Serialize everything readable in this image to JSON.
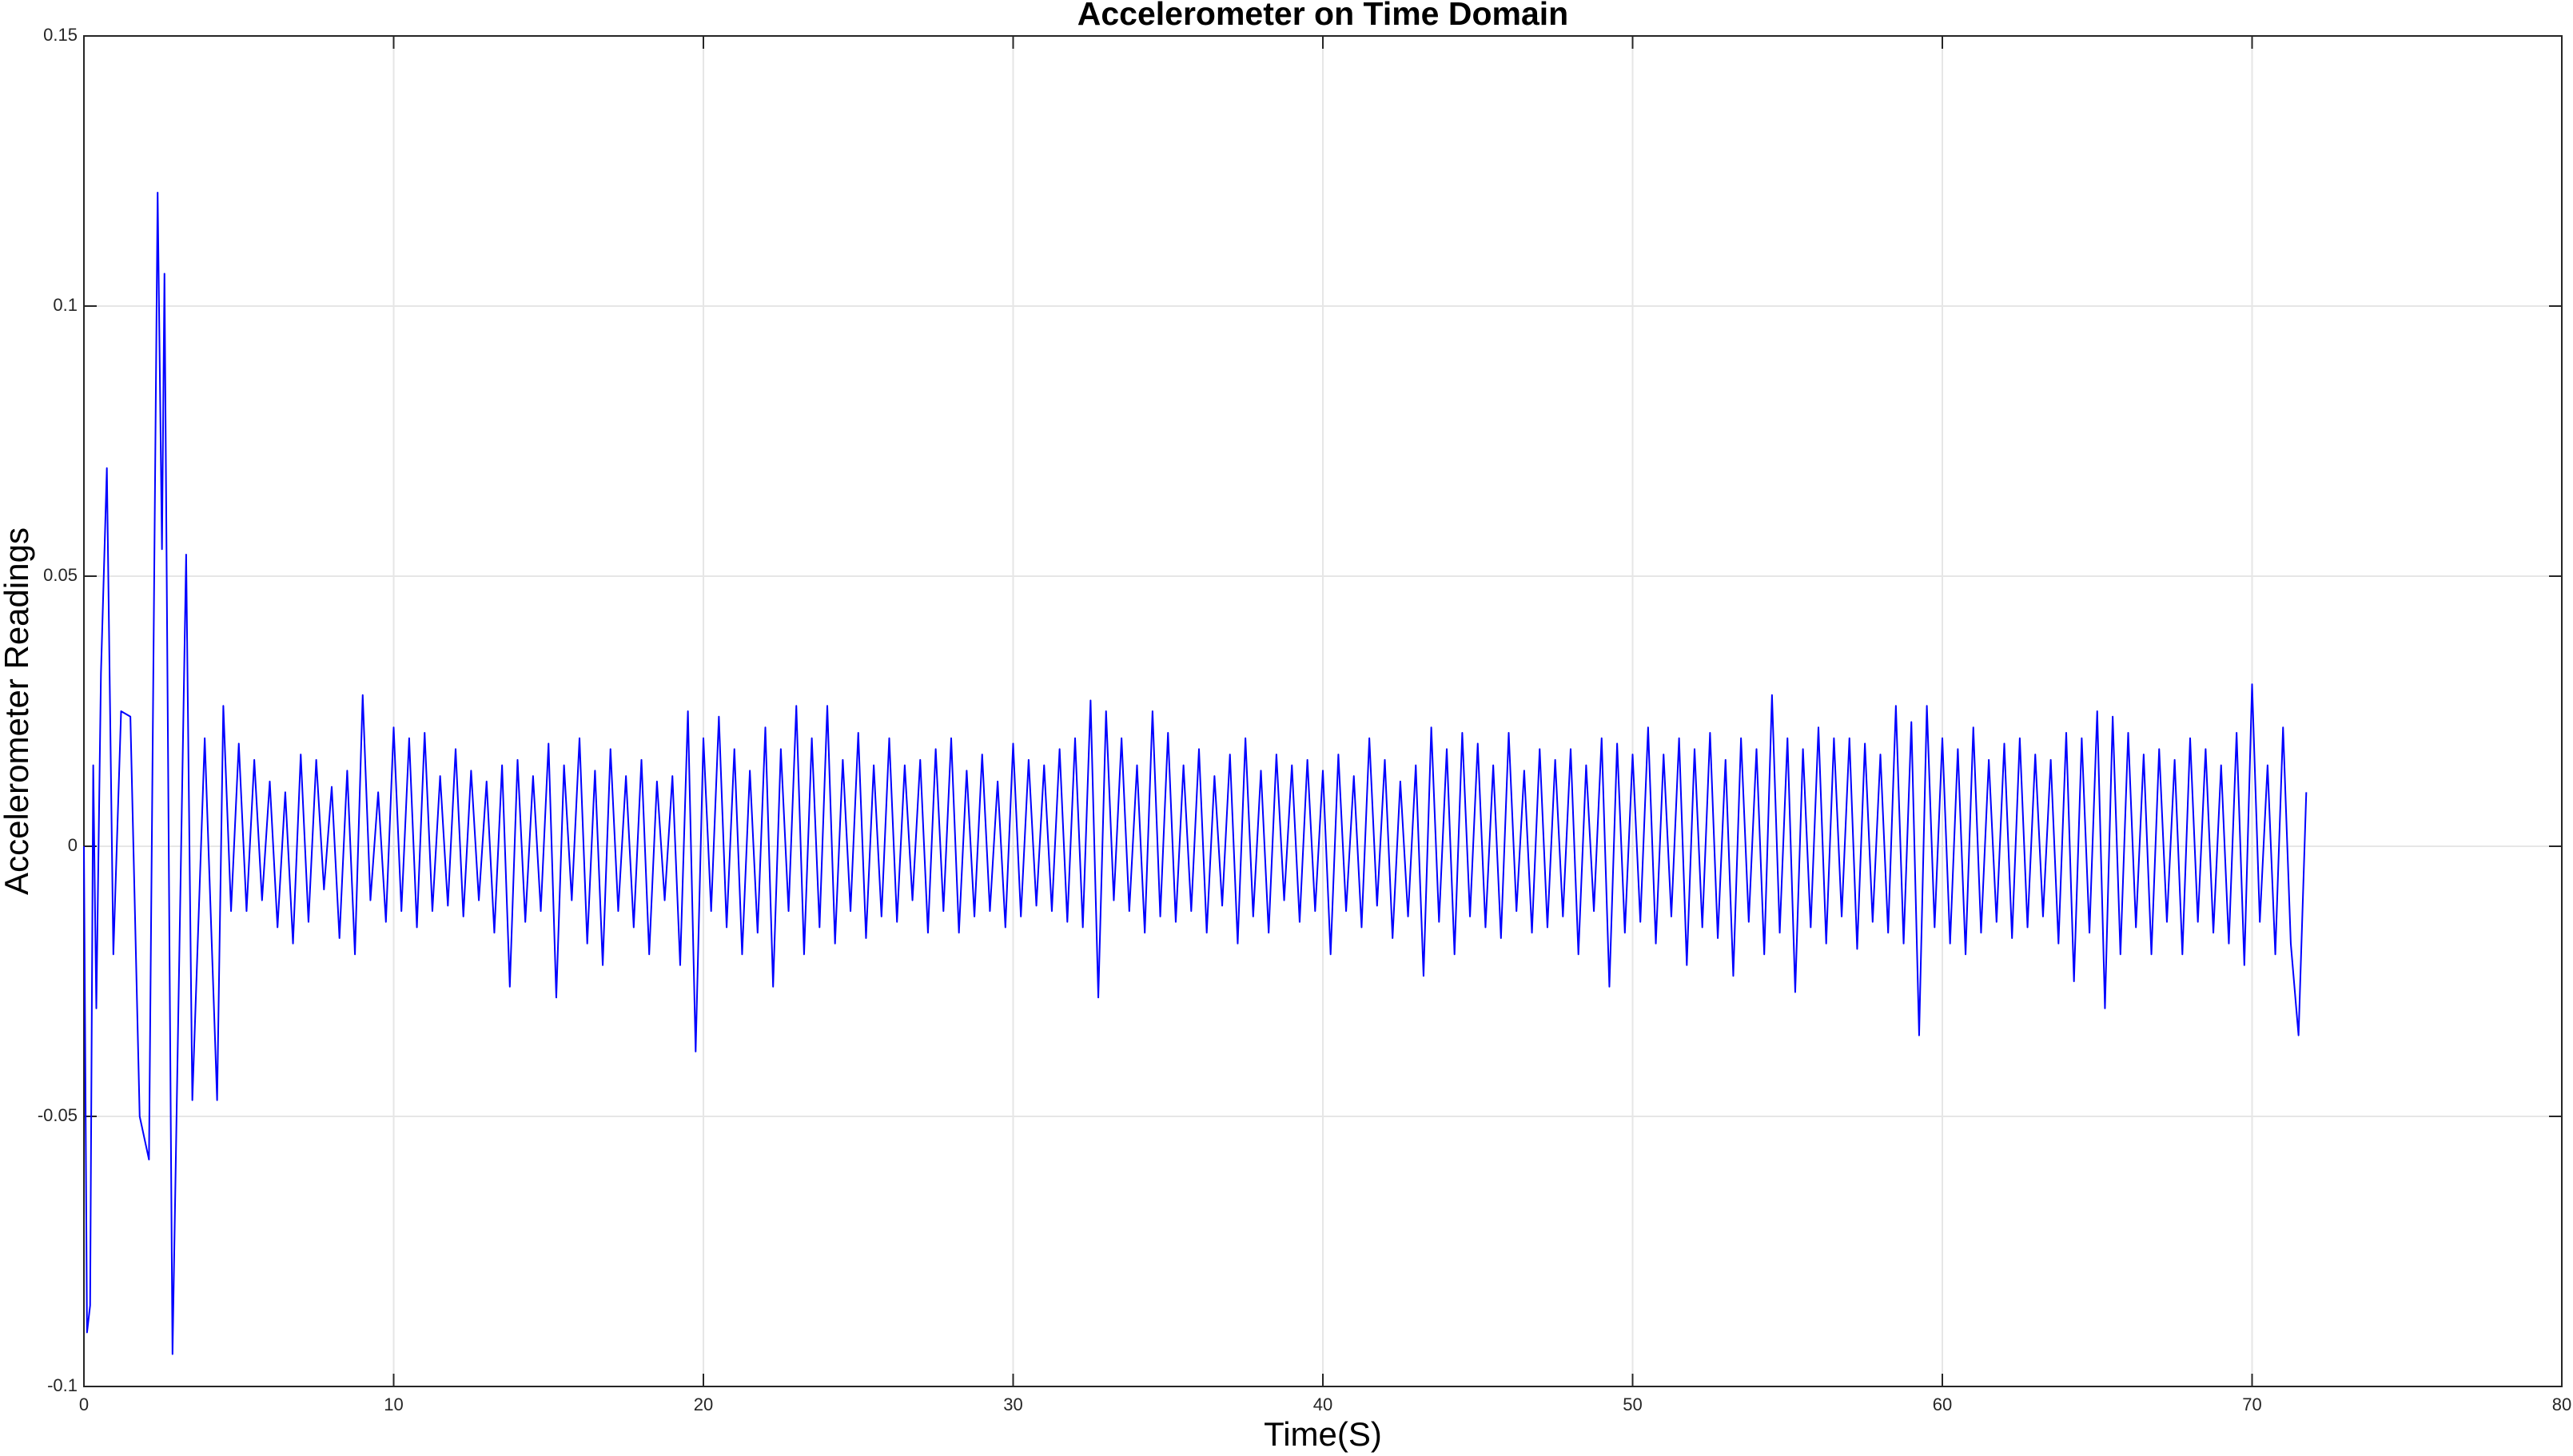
{
  "chart_data": {
    "type": "line",
    "title": "Accelerometer on Time Domain",
    "x_label": "Time(S)",
    "y_label": "Accelerometer Readings",
    "color": "#0000ff",
    "grid": true,
    "xlim": [
      0,
      80
    ],
    "xticks": [
      0,
      10,
      20,
      30,
      40,
      50,
      60,
      70,
      80
    ],
    "ylim": [
      -0.1,
      0.15
    ],
    "yticks": [
      -0.1,
      -0.05,
      0,
      0.05,
      0.1,
      0.15
    ],
    "x": [
      0,
      0.1,
      0.2,
      0.3,
      0.4,
      0.55,
      0.74,
      0.95,
      1.2,
      1.5,
      1.8,
      2.1,
      2.38,
      2.52,
      2.6,
      2.86,
      3.3,
      3.5,
      3.9,
      4.3,
      4.5,
      4.75,
      5,
      5.25,
      5.5,
      5.75,
      6,
      6.25,
      6.5,
      6.75,
      7,
      7.25,
      7.5,
      7.75,
      8,
      8.25,
      8.5,
      8.75,
      9,
      9.25,
      9.5,
      9.75,
      10,
      10.25,
      10.5,
      10.75,
      11,
      11.25,
      11.5,
      11.75,
      12,
      12.25,
      12.5,
      12.75,
      13,
      13.25,
      13.5,
      13.75,
      14,
      14.25,
      14.5,
      14.75,
      15,
      15.25,
      15.5,
      15.75,
      16,
      16.25,
      16.5,
      16.75,
      17,
      17.25,
      17.5,
      17.75,
      18,
      18.25,
      18.5,
      18.75,
      19,
      19.25,
      19.5,
      19.75,
      20,
      20.25,
      20.5,
      20.75,
      21,
      21.25,
      21.5,
      21.75,
      22,
      22.25,
      22.5,
      22.75,
      23,
      23.25,
      23.5,
      23.75,
      24,
      24.25,
      24.5,
      24.75,
      25,
      25.25,
      25.5,
      25.75,
      26,
      26.25,
      26.5,
      26.75,
      27,
      27.25,
      27.5,
      27.75,
      28,
      28.25,
      28.5,
      28.75,
      29,
      29.25,
      29.5,
      29.75,
      30,
      30.25,
      30.5,
      30.75,
      31,
      31.25,
      31.5,
      31.75,
      32,
      32.25,
      32.5,
      32.75,
      33,
      33.25,
      33.5,
      33.75,
      34,
      34.25,
      34.5,
      34.75,
      35,
      35.25,
      35.5,
      35.75,
      36,
      36.25,
      36.5,
      36.75,
      37,
      37.25,
      37.5,
      37.75,
      38,
      38.25,
      38.5,
      38.75,
      39,
      39.25,
      39.5,
      39.75,
      40,
      40.25,
      40.5,
      40.75,
      41,
      41.25,
      41.5,
      41.75,
      42,
      42.25,
      42.5,
      42.75,
      43,
      43.25,
      43.5,
      43.75,
      44,
      44.25,
      44.5,
      44.75,
      45,
      45.25,
      45.5,
      45.75,
      46,
      46.25,
      46.5,
      46.75,
      47,
      47.25,
      47.5,
      47.75,
      48,
      48.25,
      48.5,
      48.75,
      49,
      49.25,
      49.5,
      49.75,
      50,
      50.25,
      50.5,
      50.75,
      51,
      51.25,
      51.5,
      51.75,
      52,
      52.25,
      52.5,
      52.75,
      53,
      53.25,
      53.5,
      53.75,
      54,
      54.25,
      54.5,
      54.75,
      55,
      55.25,
      55.5,
      55.75,
      56,
      56.25,
      56.5,
      56.75,
      57,
      57.25,
      57.5,
      57.75,
      58,
      58.25,
      58.5,
      58.75,
      59,
      59.25,
      59.5,
      59.75,
      60,
      60.25,
      60.5,
      60.75,
      61,
      61.25,
      61.5,
      61.75,
      62,
      62.25,
      62.5,
      62.75,
      63,
      63.25,
      63.5,
      63.75,
      64,
      64.25,
      64.5,
      64.75,
      65,
      65.25,
      65.5,
      65.75,
      66,
      66.25,
      66.5,
      66.75,
      67,
      67.25,
      67.5,
      67.75,
      68,
      68.25,
      68.5,
      68.75,
      69,
      69.25,
      69.5,
      69.75,
      70,
      70.25,
      70.5,
      70.75,
      71,
      71.25,
      71.5,
      71.75
    ],
    "values": [
      0,
      -0.09,
      -0.085,
      0.015,
      -0.03,
      0.032,
      0.07,
      -0.02,
      0.025,
      0.024,
      -0.05,
      -0.058,
      0.121,
      0.055,
      0.106,
      -0.094,
      0.054,
      -0.047,
      0.02,
      -0.047,
      0.026,
      -0.012,
      0.019,
      -0.012,
      0.016,
      -0.01,
      0.012,
      -0.015,
      0.01,
      -0.018,
      0.017,
      -0.014,
      0.016,
      -0.008,
      0.011,
      -0.017,
      0.014,
      -0.02,
      0.028,
      -0.01,
      0.01,
      -0.014,
      0.022,
      -0.012,
      0.02,
      -0.015,
      0.021,
      -0.012,
      0.013,
      -0.011,
      0.018,
      -0.013,
      0.014,
      -0.01,
      0.012,
      -0.016,
      0.015,
      -0.026,
      0.016,
      -0.014,
      0.013,
      -0.012,
      0.019,
      -0.028,
      0.015,
      -0.01,
      0.02,
      -0.018,
      0.014,
      -0.022,
      0.018,
      -0.012,
      0.013,
      -0.015,
      0.016,
      -0.02,
      0.012,
      -0.01,
      0.013,
      -0.022,
      0.025,
      -0.038,
      0.02,
      -0.012,
      0.024,
      -0.015,
      0.018,
      -0.02,
      0.014,
      -0.016,
      0.022,
      -0.026,
      0.018,
      -0.012,
      0.026,
      -0.02,
      0.02,
      -0.015,
      0.026,
      -0.018,
      0.016,
      -0.012,
      0.021,
      -0.017,
      0.015,
      -0.013,
      0.02,
      -0.014,
      0.015,
      -0.01,
      0.016,
      -0.016,
      0.018,
      -0.012,
      0.02,
      -0.016,
      0.014,
      -0.013,
      0.017,
      -0.012,
      0.012,
      -0.015,
      0.019,
      -0.013,
      0.016,
      -0.011,
      0.015,
      -0.012,
      0.018,
      -0.014,
      0.02,
      -0.015,
      0.027,
      -0.028,
      0.025,
      -0.01,
      0.02,
      -0.012,
      0.015,
      -0.016,
      0.025,
      -0.013,
      0.021,
      -0.014,
      0.015,
      -0.012,
      0.018,
      -0.016,
      0.013,
      -0.011,
      0.017,
      -0.018,
      0.02,
      -0.013,
      0.014,
      -0.016,
      0.017,
      -0.01,
      0.015,
      -0.014,
      0.016,
      -0.012,
      0.014,
      -0.02,
      0.017,
      -0.012,
      0.013,
      -0.015,
      0.02,
      -0.011,
      0.016,
      -0.017,
      0.012,
      -0.013,
      0.015,
      -0.024,
      0.022,
      -0.014,
      0.018,
      -0.02,
      0.021,
      -0.013,
      0.019,
      -0.015,
      0.015,
      -0.017,
      0.021,
      -0.012,
      0.014,
      -0.016,
      0.018,
      -0.015,
      0.016,
      -0.013,
      0.018,
      -0.02,
      0.015,
      -0.012,
      0.02,
      -0.026,
      0.019,
      -0.016,
      0.017,
      -0.014,
      0.022,
      -0.018,
      0.017,
      -0.013,
      0.02,
      -0.022,
      0.018,
      -0.015,
      0.021,
      -0.017,
      0.016,
      -0.024,
      0.02,
      -0.014,
      0.018,
      -0.02,
      0.028,
      -0.016,
      0.02,
      -0.027,
      0.018,
      -0.015,
      0.022,
      -0.018,
      0.02,
      -0.013,
      0.02,
      -0.019,
      0.019,
      -0.014,
      0.017,
      -0.016,
      0.026,
      -0.018,
      0.023,
      -0.035,
      0.026,
      -0.015,
      0.02,
      -0.018,
      0.018,
      -0.02,
      0.022,
      -0.016,
      0.016,
      -0.014,
      0.019,
      -0.017,
      0.02,
      -0.015,
      0.017,
      -0.013,
      0.016,
      -0.018,
      0.021,
      -0.025,
      0.02,
      -0.016,
      0.025,
      -0.03,
      0.024,
      -0.02,
      0.021,
      -0.015,
      0.017,
      -0.02,
      0.018,
      -0.014,
      0.016,
      -0.02,
      0.02,
      -0.014,
      0.018,
      -0.016,
      0.015,
      -0.018,
      0.021,
      -0.022,
      0.03,
      -0.014,
      0.015,
      -0.02,
      0.022,
      -0.018,
      -0.035,
      0.01
    ]
  }
}
